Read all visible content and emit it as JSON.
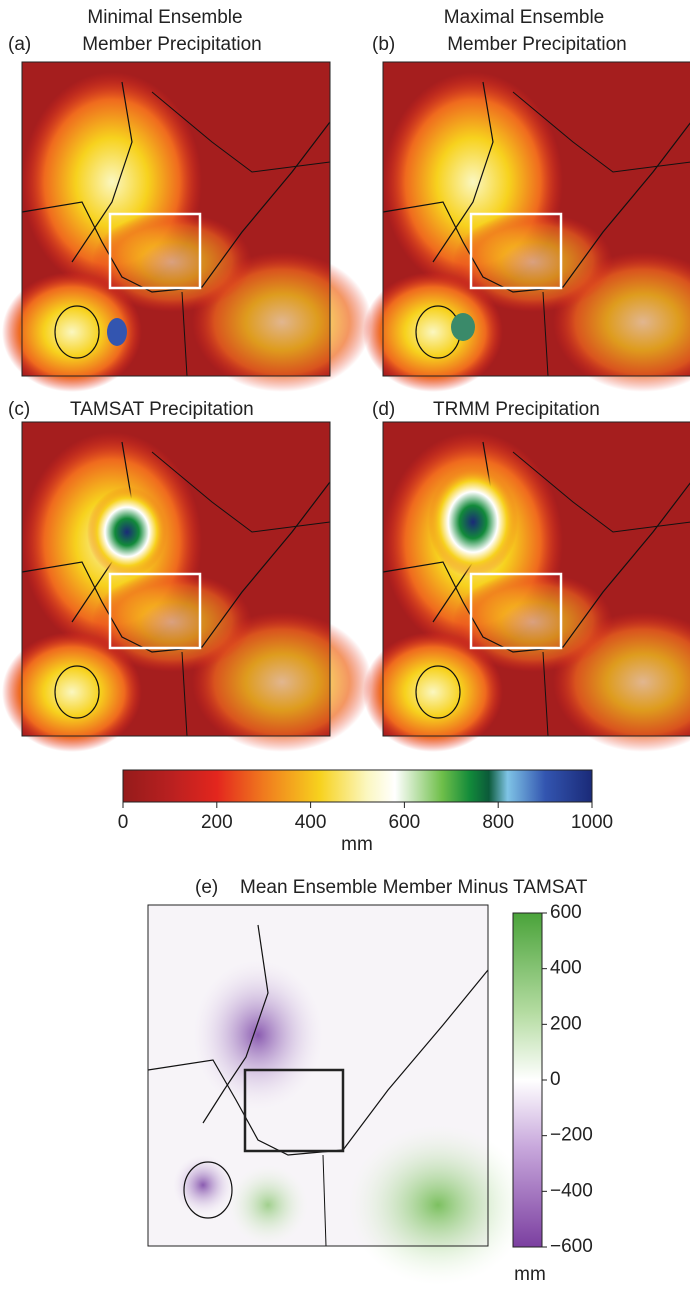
{
  "panels": [
    {
      "tag": "(a)",
      "title": [
        "Minimal Ensemble",
        "Member Precipitation"
      ]
    },
    {
      "tag": "(b)",
      "title": [
        "Maximal Ensemble",
        "Member Precipitation"
      ]
    },
    {
      "tag": "(c)",
      "title": [
        "TAMSAT Precipitation"
      ]
    },
    {
      "tag": "(d)",
      "title": [
        "TRMM Precipitation"
      ]
    }
  ],
  "colorbar": {
    "range": [
      0,
      1000
    ],
    "ticks": [
      0,
      200,
      400,
      600,
      800,
      1000
    ],
    "unit": "mm"
  },
  "diff_panel": {
    "tag": "(e)",
    "title": "Mean Ensemble Member Minus TAMSAT"
  },
  "diff_colorbar": {
    "range": [
      -600,
      600
    ],
    "ticks": [
      600,
      400,
      200,
      0,
      {
        "value": -200,
        "label": "−200"
      },
      {
        "value": -400,
        "label": "−400"
      },
      {
        "value": -600,
        "label": "−600"
      }
    ],
    "unit": "mm"
  }
}
